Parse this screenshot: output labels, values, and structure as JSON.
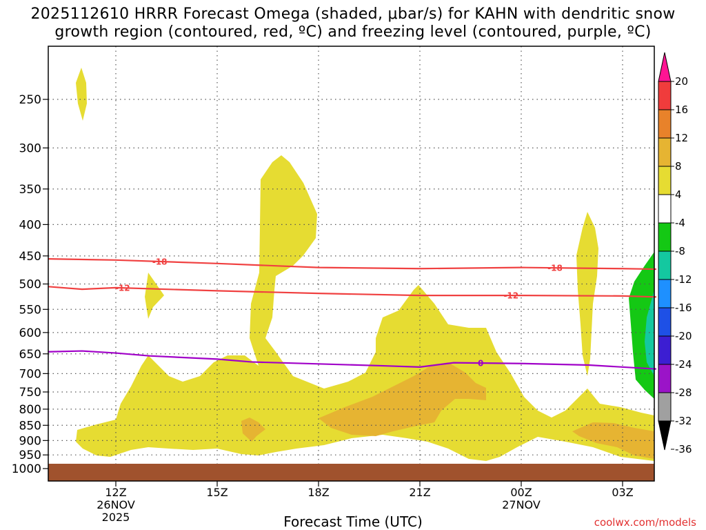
{
  "title_line1": "2025112610 HRRR Forecast Omega (shaded, μbar/s) for KAHN with dendritic snow",
  "title_line2": "growth region (contoured, red, ºC) and freezing level (contoured, purple, ºC)",
  "xlabel": "Forecast Time (UTC)",
  "credit": "coolwx.com/models",
  "chart_data": {
    "type": "time-height contour (filled)",
    "variable": "Omega (μbar/s)",
    "x_range_hours_from_12Z": [
      -2,
      16
    ],
    "y_range_mb": [
      1000,
      200
    ],
    "y_ticks": [
      "250",
      "300",
      "350",
      "400",
      "450",
      "500",
      "550",
      "600",
      "650",
      "700",
      "750",
      "800",
      "850",
      "900",
      "950",
      "1000"
    ],
    "x_ticks": [
      {
        "hour": 0,
        "label": "12Z",
        "sub1": "26NOV",
        "sub2": "2025"
      },
      {
        "hour": 3,
        "label": "15Z",
        "sub1": "",
        "sub2": ""
      },
      {
        "hour": 6,
        "label": "18Z",
        "sub1": "",
        "sub2": ""
      },
      {
        "hour": 9,
        "label": "21Z",
        "sub1": "",
        "sub2": ""
      },
      {
        "hour": 12,
        "label": "00Z",
        "sub1": "27NOV",
        "sub2": ""
      },
      {
        "hour": 15,
        "label": "03Z",
        "sub1": "",
        "sub2": ""
      }
    ],
    "colorbar": {
      "labels": [
        "20",
        "16",
        "12",
        "8",
        "4",
        "-4",
        "-8",
        "-12",
        "-16",
        "-20",
        "-24",
        "-28",
        "-32",
        "-36"
      ],
      "colors": [
        "#ff1493",
        "#f03c3c",
        "#e8822a",
        "#e6b432",
        "#e6dc32",
        "#ffffff",
        "#14c814",
        "#14c8a0",
        "#1e90ff",
        "#1e50e6",
        "#3c1ed2",
        "#9b14c8",
        "#a0a0a0",
        "#000000"
      ]
    },
    "contours": [
      {
        "name": "-18C",
        "label": "-18",
        "color": "#f04040",
        "points": [
          [
            -2,
            455
          ],
          [
            0,
            457
          ],
          [
            3,
            463
          ],
          [
            6,
            470
          ],
          [
            9,
            472
          ],
          [
            12,
            470
          ],
          [
            15,
            472
          ],
          [
            16,
            473
          ]
        ]
      },
      {
        "name": "-12C",
        "label": "-12",
        "color": "#f04040",
        "points": [
          [
            -2,
            505
          ],
          [
            -1,
            510
          ],
          [
            0,
            507
          ],
          [
            3,
            513
          ],
          [
            6,
            518
          ],
          [
            9,
            522
          ],
          [
            12,
            522
          ],
          [
            15,
            523
          ],
          [
            16,
            525
          ]
        ]
      },
      {
        "name": "0C freezing level",
        "label": "0",
        "color": "#a000c8",
        "points": [
          [
            -2,
            645
          ],
          [
            -1,
            643
          ],
          [
            0,
            648
          ],
          [
            1,
            655
          ],
          [
            3,
            663
          ],
          [
            4,
            670
          ],
          [
            6,
            675
          ],
          [
            8,
            680
          ],
          [
            9,
            683
          ],
          [
            10,
            672
          ],
          [
            12,
            674
          ],
          [
            14,
            678
          ],
          [
            16,
            688
          ]
        ]
      }
    ],
    "shaded_regions": [
      {
        "name": "omega 4-8 low-level",
        "value_range": [
          4,
          8
        ],
        "color": "#e6dc32"
      },
      {
        "name": "omega 4-8 upper plume",
        "value_range": [
          4,
          8
        ],
        "color": "#e6dc32"
      },
      {
        "name": "omega 8-12 low-level",
        "value_range": [
          8,
          12
        ],
        "color": "#e6b432"
      },
      {
        "name": "omega -4 to -8 ascent",
        "value_range": [
          -8,
          -4
        ],
        "color": "#14c814"
      },
      {
        "name": "omega -8 to -12 ascent",
        "value_range": [
          -12,
          -8
        ],
        "color": "#14c8a0"
      },
      {
        "name": "ground",
        "color": "#a0522d"
      }
    ]
  }
}
